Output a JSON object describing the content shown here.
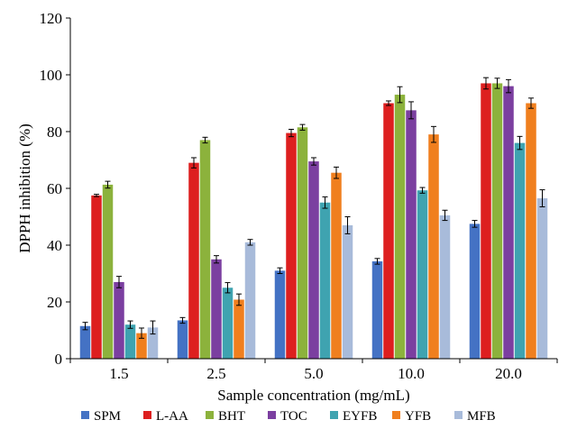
{
  "chart_data": {
    "type": "bar",
    "title": "",
    "xlabel": "Sample concentration (mg/mL)",
    "ylabel": "DPPH inhibition (%)",
    "ylim": [
      0,
      120
    ],
    "yticks": [
      "0",
      "20",
      "40",
      "60",
      "80",
      "100",
      "120"
    ],
    "grid": false,
    "legend_position": "bottom",
    "error_bars": true,
    "categories": [
      "1.5",
      "2.5",
      "5.0",
      "10.0",
      "20.0"
    ],
    "series": [
      {
        "name": "SPM",
        "color": "#4472C4",
        "values": [
          11.5,
          13.5,
          31,
          34.3,
          47.5
        ],
        "errors": [
          1.3,
          1.0,
          1.0,
          1.0,
          1.2
        ]
      },
      {
        "name": "L-AA",
        "color": "#DD1F1F",
        "values": [
          57.5,
          69,
          79.5,
          90,
          97
        ],
        "errors": [
          0.4,
          1.8,
          1.3,
          0.8,
          2.0
        ]
      },
      {
        "name": "BHT",
        "color": "#8CB23C",
        "values": [
          61.3,
          77,
          81.5,
          93,
          97
        ],
        "errors": [
          1.2,
          1.0,
          1.0,
          2.8,
          1.8
        ]
      },
      {
        "name": "TOC",
        "color": "#7B3FA0",
        "values": [
          27,
          35,
          69.5,
          87.5,
          96
        ],
        "errors": [
          2.0,
          1.3,
          1.3,
          3.0,
          2.3
        ]
      },
      {
        "name": "EYFB",
        "color": "#3FA3B0",
        "values": [
          12,
          25,
          55,
          59.3,
          76
        ],
        "errors": [
          1.3,
          1.8,
          2.0,
          1.0,
          2.3
        ]
      },
      {
        "name": "YFB",
        "color": "#F07F1E",
        "values": [
          9,
          20.8,
          65.5,
          79,
          90
        ],
        "errors": [
          1.8,
          2.0,
          2.0,
          2.8,
          1.8
        ]
      },
      {
        "name": "MFB",
        "color": "#A8BBDA",
        "values": [
          11,
          41,
          47,
          50.5,
          56.5
        ],
        "errors": [
          2.3,
          1.0,
          3.0,
          1.8,
          3.0
        ]
      }
    ]
  }
}
